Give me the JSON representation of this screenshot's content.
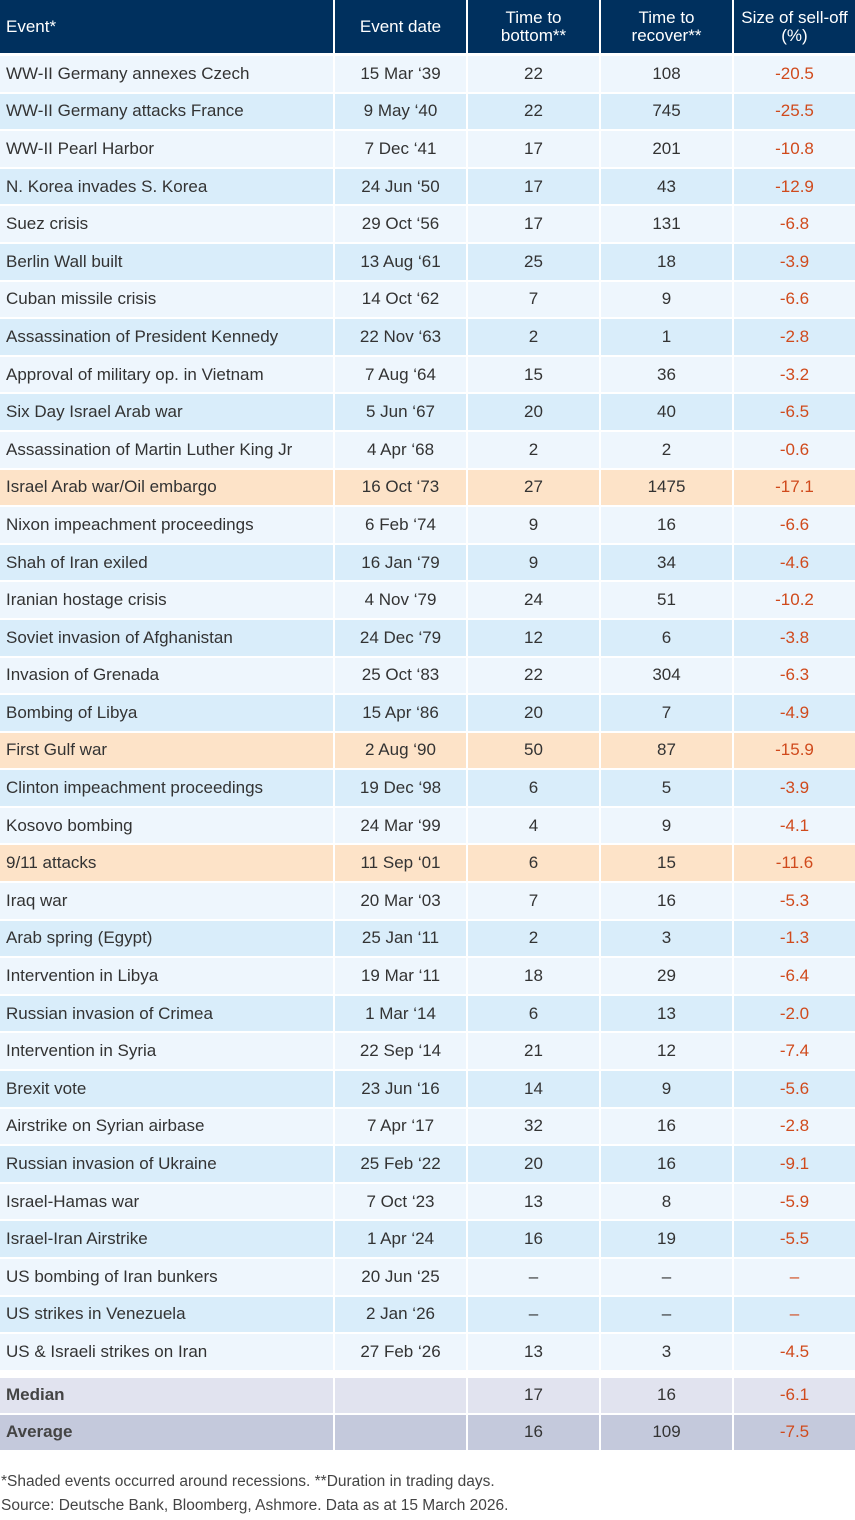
{
  "headers": [
    "Event*",
    "Event date",
    "Time to bottom**",
    "Time to recover**",
    "Size of sell-off (%)"
  ],
  "colors": {
    "header": "#00305e",
    "negative": "#d04a1c",
    "recession_shade": "#fde3c8"
  },
  "rows": [
    [
      "WW-II Germany annexes Czech",
      "15 Mar ‘39",
      "22",
      "108",
      "-20.5",
      false
    ],
    [
      "WW-II Germany attacks France",
      "9 May ‘40",
      "22",
      "745",
      "-25.5",
      false
    ],
    [
      "WW-II Pearl Harbor",
      "7 Dec ‘41",
      "17",
      "201",
      "-10.8",
      false
    ],
    [
      "N. Korea invades S. Korea",
      "24 Jun ‘50",
      "17",
      "43",
      "-12.9",
      false
    ],
    [
      "Suez crisis",
      "29 Oct ‘56",
      "17",
      "131",
      "-6.8",
      false
    ],
    [
      "Berlin Wall built",
      "13 Aug ‘61",
      "25",
      "18",
      "-3.9",
      false
    ],
    [
      "Cuban missile crisis",
      "14 Oct ‘62",
      "7",
      "9",
      "-6.6",
      false
    ],
    [
      "Assassination of President Kennedy",
      "22 Nov ‘63",
      "2",
      "1",
      "-2.8",
      false
    ],
    [
      "Approval of military op. in Vietnam",
      "7 Aug ‘64",
      "15",
      "36",
      "-3.2",
      false
    ],
    [
      "Six Day Israel Arab war",
      "5 Jun ‘67",
      "20",
      "40",
      "-6.5",
      false
    ],
    [
      "Assassination of Martin Luther King Jr",
      "4 Apr ‘68",
      "2",
      "2",
      "-0.6",
      false
    ],
    [
      "Israel Arab war/Oil embargo",
      "16 Oct ‘73",
      "27",
      "1475",
      "-17.1",
      true
    ],
    [
      "Nixon impeachment proceedings",
      "6 Feb ‘74",
      "9",
      "16",
      "-6.6",
      false
    ],
    [
      "Shah of Iran exiled",
      "16 Jan ‘79",
      "9",
      "34",
      "-4.6",
      false
    ],
    [
      "Iranian hostage crisis",
      "4 Nov ‘79",
      "24",
      "51",
      "-10.2",
      false
    ],
    [
      "Soviet invasion of Afghanistan",
      "24 Dec ‘79",
      "12",
      "6",
      "-3.8",
      false
    ],
    [
      "Invasion of Grenada",
      "25 Oct ‘83",
      "22",
      "304",
      "-6.3",
      false
    ],
    [
      "Bombing of Libya",
      "15 Apr ‘86",
      "20",
      "7",
      "-4.9",
      false
    ],
    [
      "First Gulf war",
      "2 Aug ‘90",
      "50",
      "87",
      "-15.9",
      true
    ],
    [
      "Clinton impeachment proceedings",
      "19 Dec ‘98",
      "6",
      "5",
      "-3.9",
      false
    ],
    [
      "Kosovo bombing",
      "24 Mar ‘99",
      "4",
      "9",
      "-4.1",
      false
    ],
    [
      "9/11 attacks",
      "11 Sep ‘01",
      "6",
      "15",
      "-11.6",
      true
    ],
    [
      "Iraq war",
      "20 Mar ‘03",
      "7",
      "16",
      "-5.3",
      false
    ],
    [
      "Arab spring (Egypt)",
      "25 Jan ‘11",
      "2",
      "3",
      "-1.3",
      false
    ],
    [
      "Intervention in Libya",
      "19 Mar ‘11",
      "18",
      "29",
      "-6.4",
      false
    ],
    [
      "Russian invasion of Crimea",
      "1 Mar ‘14",
      "6",
      "13",
      "-2.0",
      false
    ],
    [
      "Intervention in Syria",
      "22 Sep ‘14",
      "21",
      "12",
      "-7.4",
      false
    ],
    [
      "Brexit vote",
      "23 Jun ‘16",
      "14",
      "9",
      "-5.6",
      false
    ],
    [
      "Airstrike on Syrian airbase",
      "7 Apr ‘17",
      "32",
      "16",
      "-2.8",
      false
    ],
    [
      "Russian invasion of Ukraine",
      "25 Feb ‘22",
      "20",
      "16",
      "-9.1",
      false
    ],
    [
      "Israel-Hamas war",
      "7 Oct ‘23",
      "13",
      "8",
      "-5.9",
      false
    ],
    [
      "Israel-Iran Airstrike",
      "1 Apr ‘24",
      "16",
      "19",
      "-5.5",
      false
    ],
    [
      "US bombing of Iran bunkers",
      "20 Jun ‘25",
      "–",
      "–",
      "–",
      false
    ],
    [
      "US strikes in Venezuela",
      "2 Jan ‘26",
      "–",
      "–",
      "–",
      false
    ],
    [
      "US & Israeli strikes on Iran",
      "27 Feb ‘26",
      "13",
      "3",
      "-4.5",
      false
    ]
  ],
  "summary": [
    {
      "label": "Median",
      "date": "",
      "bottom": "17",
      "recover": "16",
      "selloff": "-6.1"
    },
    {
      "label": "Average",
      "date": "",
      "bottom": "16",
      "recover": "109",
      "selloff": "-7.5"
    }
  ],
  "footnote": "*Shaded events occurred around recessions. **Duration in trading days.",
  "source": "Source: Deutsche Bank, Bloomberg, Ashmore. Data as at 15 March 2026."
}
